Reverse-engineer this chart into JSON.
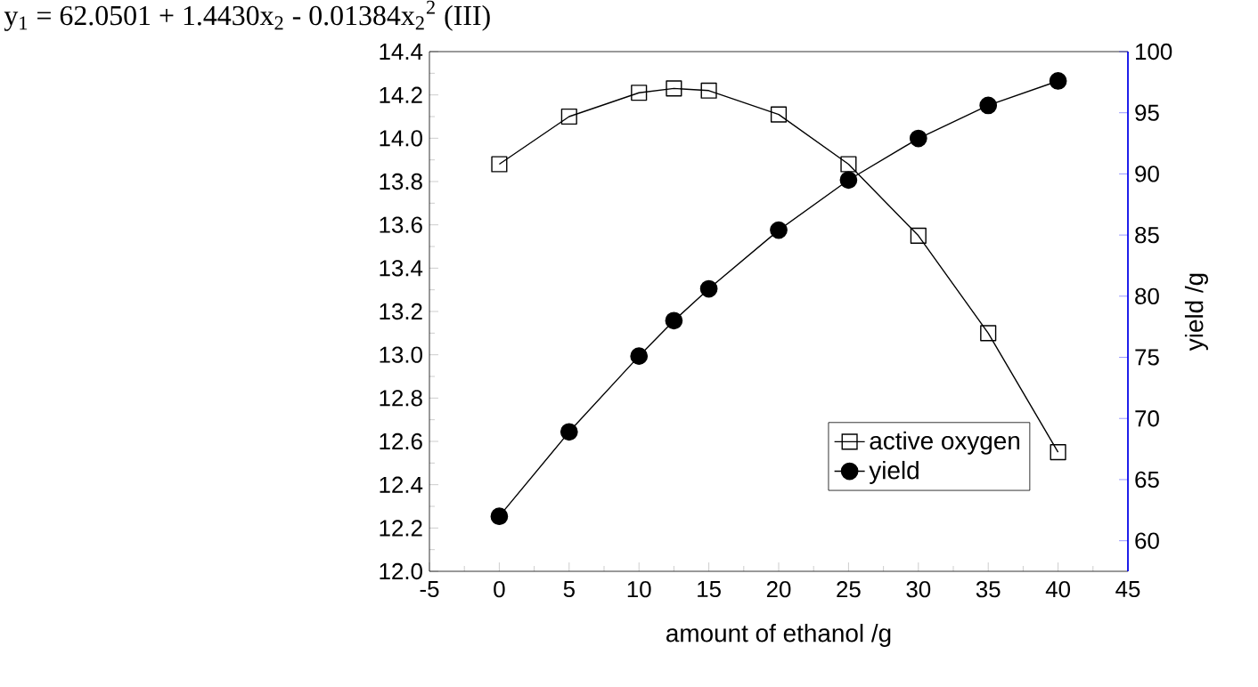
{
  "chart_data": {
    "type": "line",
    "title": "y$_{1}$ = 62.0501 + 1.4430x$_{2}$ - 0.01384x$_{2}$$^{2}$          (III)",
    "xlabel": "amount of ethanol /g",
    "y2label": "yield /g",
    "x": [
      0,
      5,
      10,
      12.5,
      15,
      20,
      25,
      30,
      35,
      40
    ],
    "series": [
      {
        "name": "active oxygen",
        "color": "#000000",
        "marker": "square",
        "values": [
          13.88,
          14.1,
          14.21,
          14.23,
          14.22,
          14.11,
          13.88,
          13.55,
          13.1,
          12.55
        ]
      },
      {
        "name": "yield",
        "color": "#000000",
        "marker": "circle",
        "axis": "y2",
        "values": [
          62.0,
          68.9,
          75.1,
          78.0,
          80.6,
          85.4,
          89.5,
          92.9,
          95.6,
          97.6
        ]
      }
    ],
    "xlim": [
      -5,
      45
    ],
    "xticks": [
      -5,
      0,
      5,
      10,
      15,
      20,
      25,
      30,
      35,
      40,
      45
    ],
    "ylim": [
      12.0,
      14.4
    ],
    "yticks": [
      {
        "value": 12,
        "label": "12.0"
      },
      12.2,
      12.4,
      12.6,
      12.8,
      {
        "value": 13,
        "label": "13.0"
      },
      13.2,
      13.4,
      13.6,
      13.8,
      {
        "value": 14,
        "label": "14.0"
      },
      14.2,
      14.4
    ],
    "y2lim": [
      57.5,
      100
    ],
    "y2ticks": [
      60,
      65,
      70,
      75,
      80,
      85,
      90,
      95,
      100
    ],
    "legend": "bottom right",
    "grid": false,
    "line_style": "solid"
  }
}
